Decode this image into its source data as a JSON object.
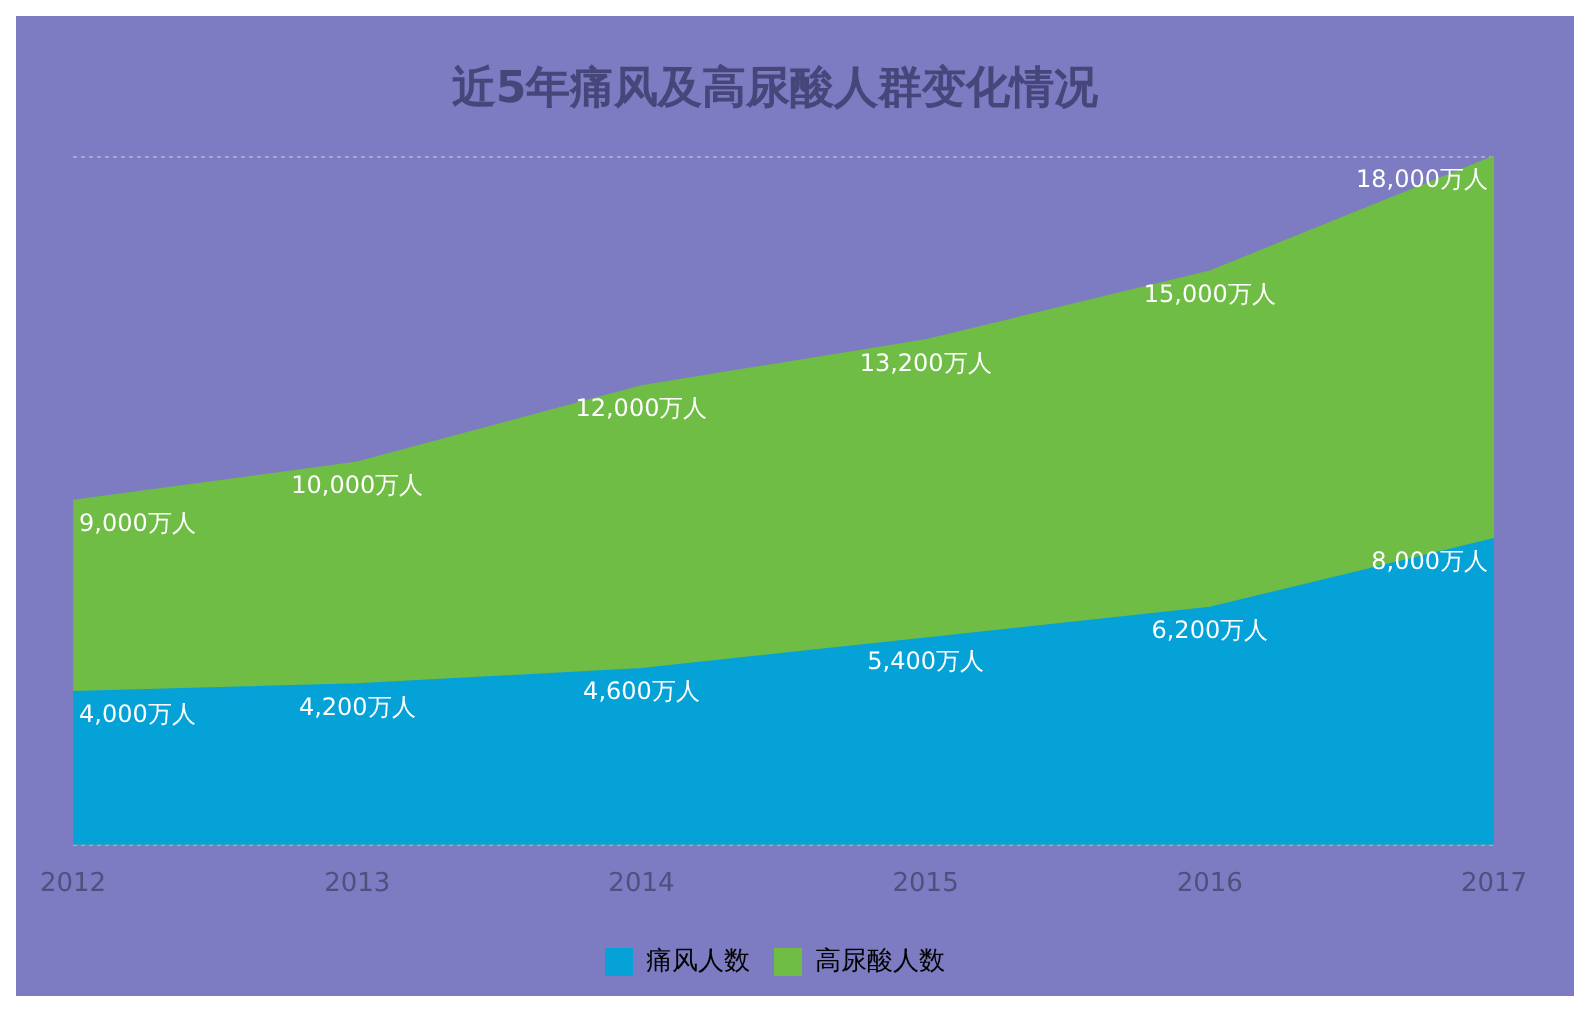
{
  "chart_data": {
    "type": "area",
    "title": "近5年痛风及高尿酸人群变化情况",
    "categories": [
      "2012",
      "2013",
      "2014",
      "2015",
      "2016",
      "2017"
    ],
    "series": [
      {
        "name": "痛风人数",
        "color": "#05a2d8",
        "values": [
          4000,
          4200,
          4600,
          5400,
          6200,
          8000
        ],
        "value_labels": [
          "4,000万人",
          "4,200万人",
          "4,600万人",
          "5,400万人",
          "6,200万人",
          "8,000万人"
        ]
      },
      {
        "name": "高尿酸人数",
        "color": "#6fbd45",
        "values": [
          9000,
          10000,
          12000,
          13200,
          15000,
          18000
        ],
        "value_labels": [
          "9,000万人",
          "10,000万人",
          "12,000万人",
          "13,200万人",
          "15,000万人",
          "18,000万人"
        ]
      }
    ],
    "ylim": [
      0,
      18000
    ],
    "yticks": [
      {
        "value": 0,
        "label": null
      },
      {
        "value": 18000,
        "label": null
      }
    ],
    "grid": "y",
    "tick_labels": "x",
    "legend": "bottom"
  }
}
